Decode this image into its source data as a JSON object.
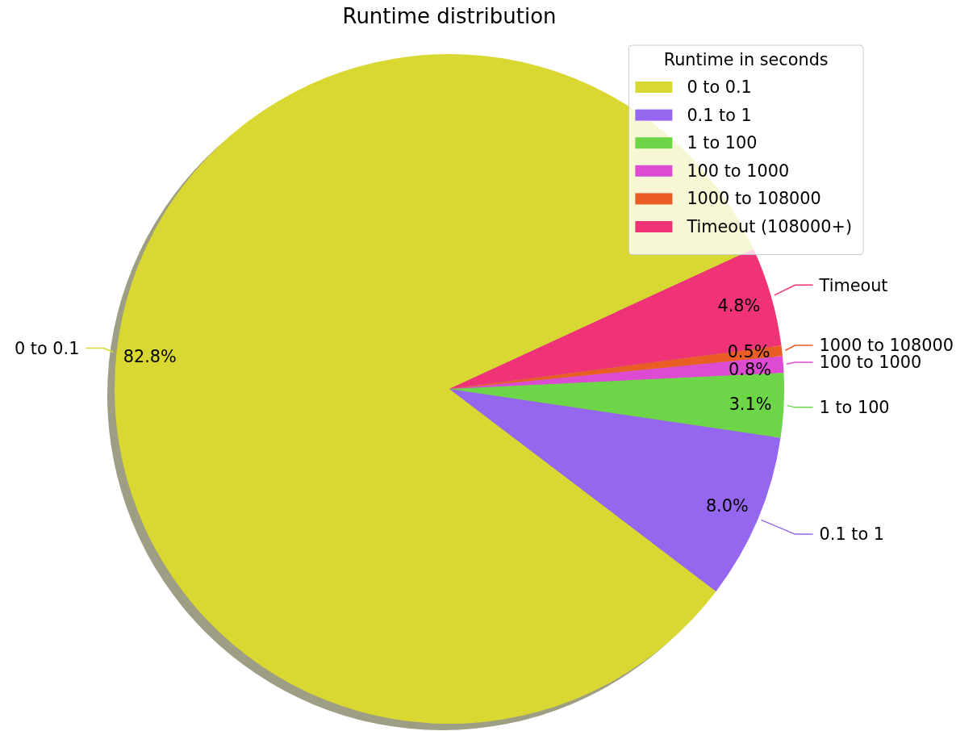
{
  "chart_data": {
    "type": "pie",
    "title": "Runtime distribution",
    "legend_title": "Runtime in seconds",
    "categories": [
      "0 to 0.1",
      "0.1 to 1",
      "1 to 100",
      "100 to 1000",
      "1000 to 108000",
      "Timeout (108000+)"
    ],
    "values": [
      82.8,
      8.0,
      3.1,
      0.8,
      0.5,
      4.8
    ],
    "colors": [
      "#d9d731",
      "#9467ee",
      "#6dd548",
      "#dd4bd3",
      "#ea5e25",
      "#f03377"
    ],
    "value_labels": [
      "82.8%",
      "8.0%",
      "3.1%",
      "0.8%",
      "0.5%",
      "4.8%"
    ],
    "annotations": [
      "0 to 0.1",
      "0.1 to 1",
      "1 to 100",
      "100 to 1000",
      "1000 to 108000",
      "Timeout"
    ],
    "legend": "top right"
  }
}
